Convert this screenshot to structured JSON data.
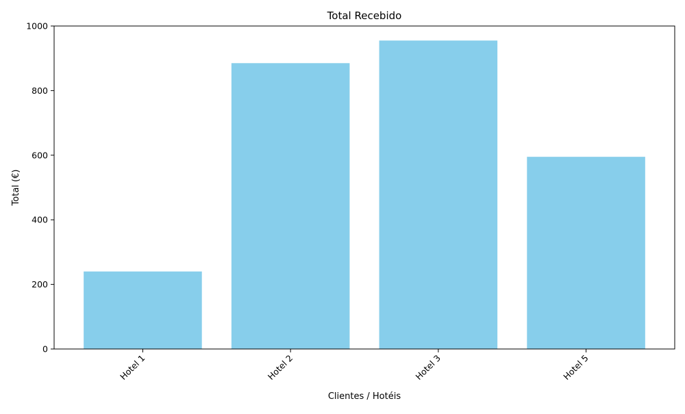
{
  "chart_data": {
    "type": "bar",
    "title": "Total Recebido",
    "xlabel": "Clientes / Hotéis",
    "ylabel": "Total (€)",
    "categories": [
      "Hotel 1",
      "Hotel 2",
      "Hotel 3",
      "Hotel 5"
    ],
    "values": [
      240,
      885,
      955,
      595
    ],
    "ylim": [
      0,
      1000
    ],
    "yticks": [
      0,
      200,
      400,
      600,
      800,
      1000
    ],
    "bar_color": "#87ceeb",
    "grid": false,
    "legend": "none"
  }
}
